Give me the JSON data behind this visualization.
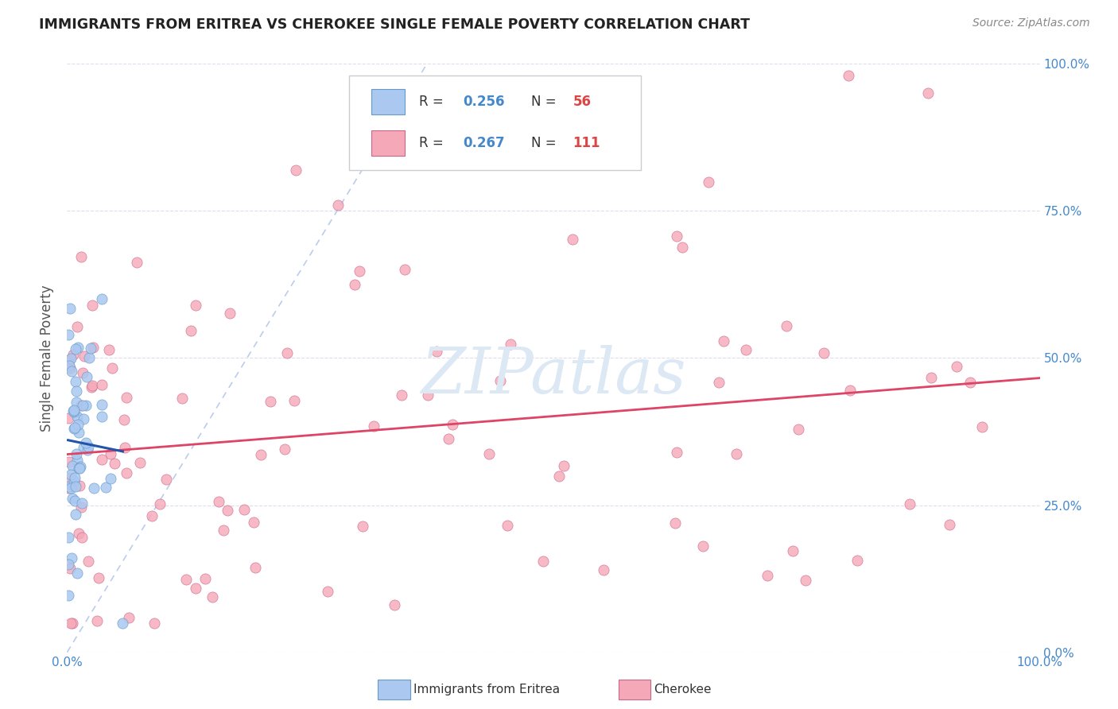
{
  "title": "IMMIGRANTS FROM ERITREA VS CHEROKEE SINGLE FEMALE POVERTY CORRELATION CHART",
  "source": "Source: ZipAtlas.com",
  "ylabel": "Single Female Poverty",
  "ytick_labels": [
    "0.0%",
    "25.0%",
    "50.0%",
    "75.0%",
    "100.0%"
  ],
  "ytick_values": [
    0.0,
    0.25,
    0.5,
    0.75,
    1.0
  ],
  "legend_r_n": [
    {
      "R": "0.256",
      "N": "56"
    },
    {
      "R": "0.267",
      "N": "111"
    }
  ],
  "eritrea_R": 0.256,
  "eritrea_N": 56,
  "cherokee_R": 0.267,
  "cherokee_N": 111,
  "scatter_color_eritrea": "#aac8f0",
  "scatter_color_cherokee": "#f5a8b8",
  "scatter_edge_eritrea": "#6699cc",
  "scatter_edge_cherokee": "#cc6688",
  "trend_color_eritrea": "#2255aa",
  "trend_color_cherokee": "#dd4466",
  "diagonal_color": "#bbccee",
  "background_color": "#ffffff",
  "grid_color": "#ddddee",
  "title_color": "#222222",
  "source_color": "#888888",
  "axis_label_color": "#4488cc",
  "watermark_color": "#dde8f5",
  "watermark_text": "ZIPatlas",
  "legend_box_color": "#ffffff",
  "legend_edge_color": "#cccccc",
  "R_text_color": "#4488cc",
  "N_text_color": "#dd4444"
}
